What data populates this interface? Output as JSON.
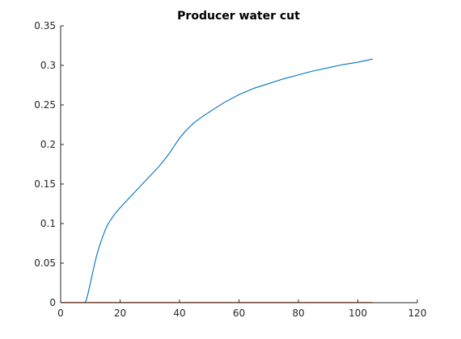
{
  "chart_data": {
    "type": "line",
    "title": "Producer water cut",
    "xlabel": "",
    "ylabel": "",
    "xlim": [
      0,
      120
    ],
    "ylim": [
      0,
      0.35
    ],
    "xticks": [
      "0",
      "20",
      "40",
      "60",
      "80",
      "100",
      "120"
    ],
    "yticks": [
      "0",
      "0.05",
      "0.1",
      "0.15",
      "0.2",
      "0.25",
      "0.3",
      "0.35"
    ],
    "grid": false,
    "box": "left-bottom",
    "series": [
      {
        "color": "#0072BD",
        "x": [
          0,
          8,
          8.5,
          9,
          10,
          11,
          12,
          13,
          14,
          15,
          16,
          18,
          20,
          22,
          25,
          28,
          30,
          33,
          35,
          37,
          38,
          40,
          42,
          45,
          48,
          50,
          55,
          60,
          65,
          70,
          75,
          80,
          85,
          90,
          95,
          100,
          105
        ],
        "y": [
          0,
          0,
          0.002,
          0.008,
          0.025,
          0.042,
          0.058,
          0.071,
          0.082,
          0.092,
          0.1,
          0.111,
          0.12,
          0.128,
          0.14,
          0.152,
          0.16,
          0.172,
          0.181,
          0.191,
          0.197,
          0.208,
          0.217,
          0.228,
          0.236,
          0.241,
          0.253,
          0.263,
          0.271,
          0.277,
          0.283,
          0.288,
          0.293,
          0.297,
          0.301,
          0.304,
          0.308
        ]
      },
      {
        "color": "#D95319",
        "x": [
          0,
          105
        ],
        "y": [
          0.0003,
          0.0003
        ]
      },
      {
        "color": "#FF0000",
        "x": [
          0,
          105
        ],
        "y": [
          0,
          0
        ]
      }
    ]
  }
}
